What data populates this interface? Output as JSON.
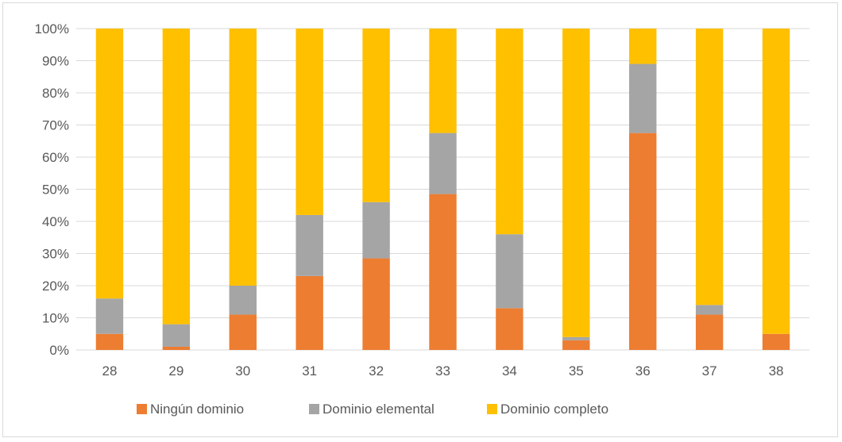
{
  "chart_data": {
    "type": "bar",
    "stacked": true,
    "percent": true,
    "title": "",
    "xlabel": "",
    "ylabel": "",
    "ylim": [
      0,
      100
    ],
    "yticks": [
      "0%",
      "10%",
      "20%",
      "30%",
      "40%",
      "50%",
      "60%",
      "70%",
      "80%",
      "90%",
      "100%"
    ],
    "grid": true,
    "legend_position": "bottom",
    "categories": [
      "28",
      "29",
      "30",
      "31",
      "32",
      "33",
      "34",
      "35",
      "36",
      "37",
      "38"
    ],
    "series": [
      {
        "name": "Ningún dominio",
        "color": "#ED7D31",
        "values": [
          5,
          1,
          11,
          23,
          28.5,
          48.5,
          13,
          3,
          67.5,
          11,
          5
        ]
      },
      {
        "name": "Dominio elemental",
        "color": "#A5A5A5",
        "values": [
          11,
          7,
          9,
          19,
          17.5,
          19,
          23,
          1,
          21.5,
          3,
          0
        ]
      },
      {
        "name": "Dominio completo",
        "color": "#FFC000",
        "values": [
          84,
          92,
          80,
          58,
          54,
          32.5,
          64,
          96,
          11,
          86,
          95
        ]
      }
    ]
  }
}
